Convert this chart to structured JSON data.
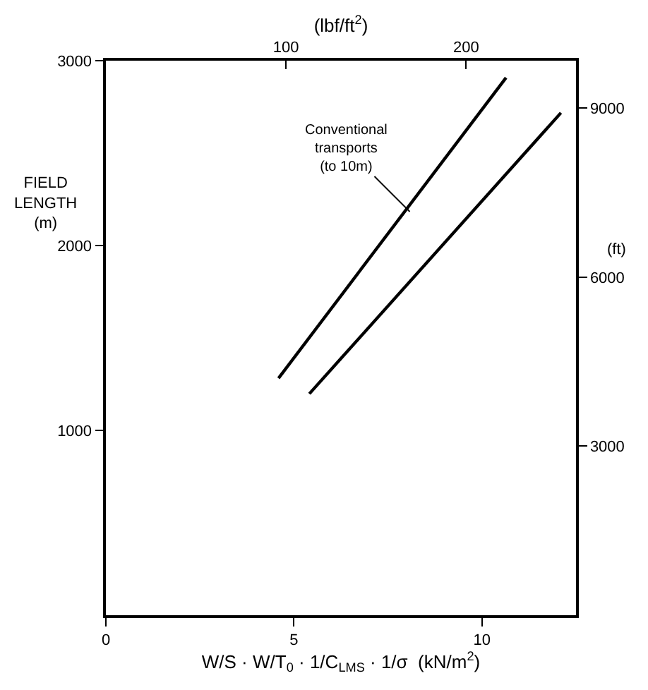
{
  "chart_data": {
    "type": "line",
    "ylabel": "FIELD\nLENGTH\n(m)",
    "y2label": "(ft)",
    "x2label": "(lbf/ft$^{2}$)",
    "xlabel": "W/S · W/T$_{0}$ · 1/C$_{LMS}$ · 1/σ  (kN/m$^{2}$)",
    "xlim": [
      0,
      12.5
    ],
    "xticks": [
      0,
      5,
      10
    ],
    "ylim": [
      0,
      3000
    ],
    "yticks": [
      1000,
      2000,
      3000
    ],
    "x2lim": [
      0,
      261
    ],
    "x2ticks": [
      100,
      200
    ],
    "y2lim": [
      0,
      9843
    ],
    "y2ticks": [
      3000,
      6000,
      9000
    ],
    "series": [
      {
        "color": "#000000",
        "x": [
          4.59,
          10.64
        ],
        "values": [
          1282,
          2908
        ]
      },
      {
        "color": "#000000",
        "x": [
          5.41,
          12.1
        ],
        "values": [
          1198,
          2718
        ]
      }
    ],
    "annotations": [
      {
        "text": "Conventional\ntransports\n(to 10m)",
        "x": 8.08,
        "y": 2183
      }
    ],
    "marker": "none",
    "line_style": "solid"
  }
}
